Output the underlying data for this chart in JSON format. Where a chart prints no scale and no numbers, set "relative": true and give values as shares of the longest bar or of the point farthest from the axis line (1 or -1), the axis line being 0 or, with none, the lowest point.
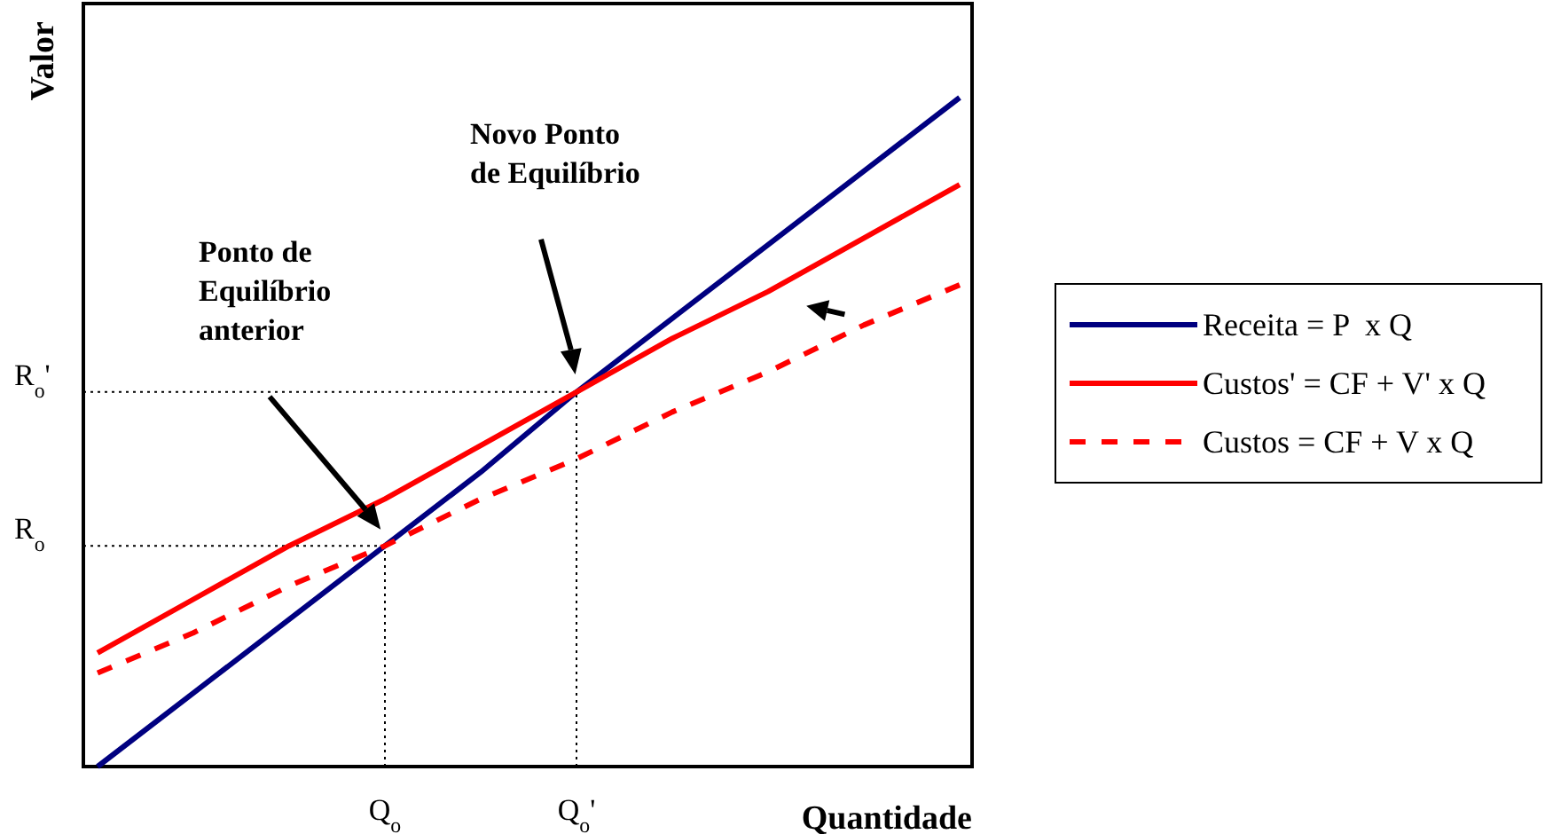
{
  "chart_data": {
    "type": "line",
    "relative": true,
    "xlabel": "Quantidade",
    "ylabel": "Valor",
    "categories": [
      null,
      null,
      null,
      "Q$_{o}$",
      null,
      "Q$_{o}$'",
      null,
      null,
      null,
      null
    ],
    "series": [
      {
        "name": "Receita = P  x Q",
        "color": "#000080",
        "values": [
          0,
          0.11,
          0.22,
          0.33,
          0.44,
          0.56,
          0.67,
          0.78,
          0.89,
          1.0
        ]
      },
      {
        "name": "Custos' = CF + V' x Q",
        "color": "#ff0000",
        "values": [
          0.17,
          0.25,
          0.33,
          0.4,
          0.48,
          0.56,
          0.64,
          0.71,
          0.79,
          0.87
        ]
      },
      {
        "name": "Custos = CF + V x Q",
        "color": "#ff0000",
        "line_style": "dashed",
        "values": [
          0.14,
          0.2,
          0.27,
          0.33,
          0.4,
          0.46,
          0.53,
          0.59,
          0.66,
          0.72
        ]
      }
    ],
    "ref_lines": [
      {
        "axis": "x",
        "value": "Q$_{o}$",
        "line_style": "dotted",
        "color": "#000000"
      },
      {
        "axis": "x",
        "value": "Q$_{o}$'",
        "line_style": "dotted",
        "color": "#000000"
      },
      {
        "axis": "y",
        "value": 0.33,
        "label": "R$_{o}$",
        "line_style": "dotted",
        "color": "#000000"
      },
      {
        "axis": "y",
        "value": 0.56,
        "label": "R$_{o}$'",
        "line_style": "dotted",
        "color": "#000000"
      }
    ],
    "annotations": [
      "Ponto de\nEquilíbrio\nanterior",
      "Novo Ponto\nde Equilíbrio"
    ],
    "legend": "right"
  }
}
